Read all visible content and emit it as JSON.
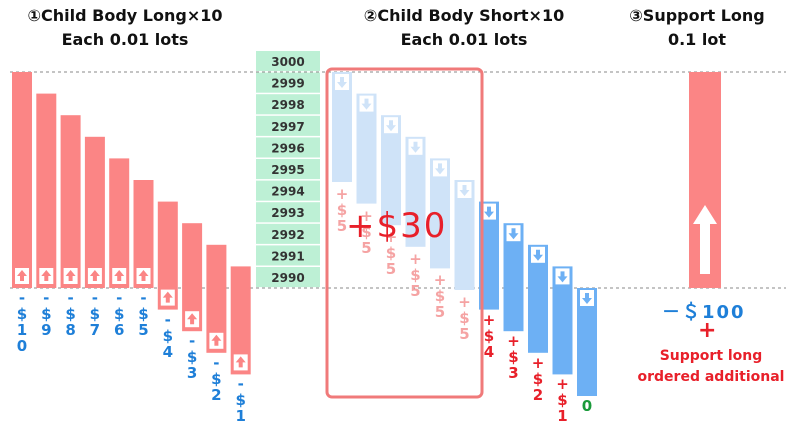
{
  "headers": [
    {
      "title": "①Child Body Long×10",
      "sub": "Each 0.01 lots"
    },
    {
      "title": "②Child Body Short×10",
      "sub": "Each 0.01 lots"
    },
    {
      "title": "③Support Long",
      "sub": "0.1 lot"
    }
  ],
  "price_ladder": [
    "3000",
    "2999",
    "2998",
    "2997",
    "2996",
    "2995",
    "2994",
    "2993",
    "2992",
    "2991",
    "2990"
  ],
  "long_profits": [
    [
      "-",
      "$",
      "1",
      "0"
    ],
    [
      "-",
      "$",
      "9"
    ],
    [
      "-",
      "$",
      "8"
    ],
    [
      "-",
      "$",
      "7"
    ],
    [
      "-",
      "$",
      "6"
    ],
    [
      "-",
      "$",
      "5"
    ],
    [
      "-",
      "$",
      "4"
    ],
    [
      "-",
      "$",
      "3"
    ],
    [
      "-",
      "$",
      "2"
    ],
    [
      "-",
      "$",
      "1"
    ]
  ],
  "short_faded_profits": [
    [
      "+",
      "$",
      "5"
    ],
    [
      "+",
      "$",
      "5"
    ],
    [
      "+",
      "$",
      "5"
    ],
    [
      "+",
      "$",
      "5"
    ],
    [
      "+",
      "$",
      "5"
    ],
    [
      "+",
      "$",
      "5"
    ]
  ],
  "short_profits": [
    [
      "+",
      "$",
      "4"
    ],
    [
      "+",
      "$",
      "3"
    ],
    [
      "+",
      "$",
      "2"
    ],
    [
      "+",
      "$",
      "1"
    ],
    [
      "0"
    ]
  ],
  "short_total": "+$30",
  "support": {
    "value": "－＄100",
    "plus": "+",
    "line1": "Support long",
    "line2": "ordered additional"
  },
  "colors": {
    "long": "#fb8585",
    "short_faded": "#cfe3f8",
    "short": "#6db0f4",
    "ladder": "#bdf0d5",
    "ladder_text": "#333333",
    "box": "#f07a7a",
    "red_text": "#e8202a",
    "blue_text": "#1e7fd8",
    "green_text": "#1a9a3a"
  }
}
